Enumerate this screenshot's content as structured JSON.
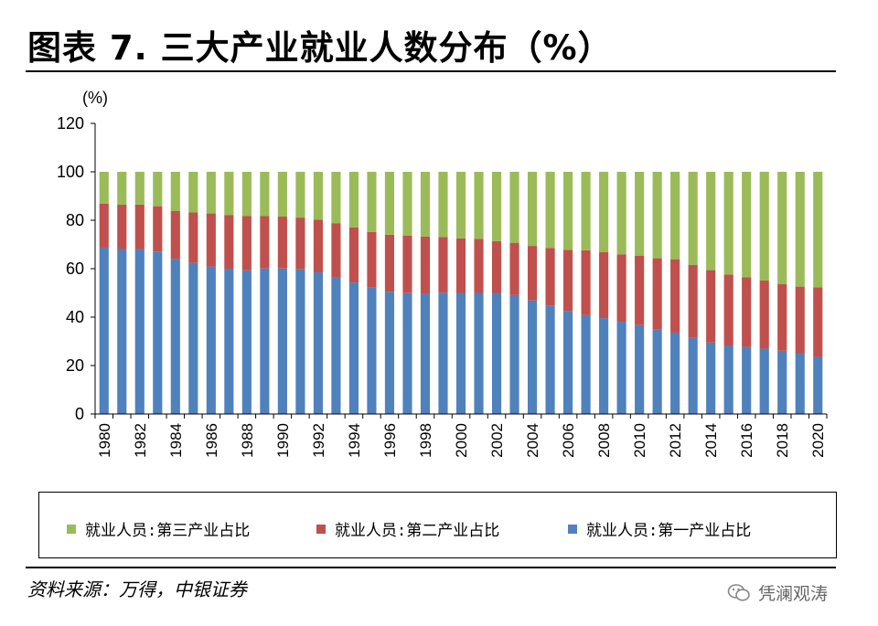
{
  "title": "图表 7. 三大产业就业人数分布（%）",
  "unit_label": "(%)",
  "source": "资料来源：万得，中银证券",
  "watermark": "凭澜观涛",
  "colors": {
    "tertiary": "#9BBB59",
    "secondary": "#C0504D",
    "primary": "#4F81BD"
  },
  "legend": [
    {
      "label": "就业人员:第三产业占比",
      "color": "#9BBB59"
    },
    {
      "label": "就业人员:第二产业占比",
      "color": "#C0504D"
    },
    {
      "label": "就业人员:第一产业占比",
      "color": "#4F81BD"
    }
  ],
  "chart_data": {
    "type": "bar",
    "stacked": true,
    "x": [
      1980,
      1981,
      1982,
      1983,
      1984,
      1985,
      1986,
      1987,
      1988,
      1989,
      1990,
      1991,
      1992,
      1993,
      1994,
      1995,
      1996,
      1997,
      1998,
      1999,
      2000,
      2001,
      2002,
      2003,
      2004,
      2005,
      2006,
      2007,
      2008,
      2009,
      2010,
      2011,
      2012,
      2013,
      2014,
      2015,
      2016,
      2017,
      2018,
      2019,
      2020
    ],
    "x_tick_labels": [
      "1980",
      "1982",
      "1984",
      "1986",
      "1988",
      "1990",
      "1992",
      "1994",
      "1996",
      "1998",
      "2000",
      "2002",
      "2004",
      "2006",
      "2008",
      "2010",
      "2012",
      "2014",
      "2016",
      "2018",
      "2020"
    ],
    "ylim": [
      0,
      120
    ],
    "yticks": [
      0,
      20,
      40,
      60,
      80,
      100,
      120
    ],
    "ylabel": "(%)",
    "grid": false,
    "legend_position": "bottom",
    "series": [
      {
        "name": "就业人员:第一产业占比",
        "color": "#4F81BD",
        "values": [
          68.7,
          68.1,
          68.1,
          67.1,
          64.0,
          62.4,
          60.9,
          60.0,
          59.3,
          60.1,
          60.1,
          59.7,
          58.5,
          56.4,
          54.3,
          52.2,
          50.5,
          49.9,
          49.8,
          50.1,
          50.0,
          50.0,
          50.0,
          49.1,
          46.9,
          44.8,
          42.6,
          40.8,
          39.6,
          38.1,
          36.7,
          34.8,
          33.6,
          31.4,
          29.5,
          28.3,
          27.7,
          27.0,
          26.1,
          25.1,
          23.6
        ]
      },
      {
        "name": "就业人员:第二产业占比",
        "color": "#C0504D",
        "values": [
          18.2,
          18.3,
          18.4,
          18.7,
          19.9,
          20.8,
          21.9,
          22.2,
          22.4,
          21.6,
          21.4,
          21.4,
          21.7,
          22.4,
          22.7,
          23.0,
          23.5,
          23.7,
          23.5,
          23.0,
          22.5,
          22.3,
          21.4,
          21.6,
          22.5,
          23.8,
          25.2,
          26.8,
          27.2,
          27.8,
          28.7,
          29.5,
          30.3,
          30.1,
          29.9,
          29.3,
          28.8,
          28.1,
          27.6,
          27.5,
          28.7
        ]
      },
      {
        "name": "就业人员:第三产业占比",
        "color": "#9BBB59",
        "values": [
          13.1,
          13.6,
          13.5,
          14.2,
          16.1,
          16.8,
          17.2,
          17.8,
          18.3,
          18.3,
          18.5,
          18.9,
          19.8,
          21.2,
          23.0,
          24.8,
          26.0,
          26.4,
          26.7,
          26.9,
          27.5,
          27.7,
          28.6,
          29.3,
          30.6,
          31.4,
          32.2,
          32.4,
          33.2,
          34.1,
          34.6,
          35.7,
          36.1,
          38.5,
          40.6,
          42.4,
          43.5,
          44.9,
          46.3,
          47.4,
          47.7
        ]
      }
    ]
  }
}
